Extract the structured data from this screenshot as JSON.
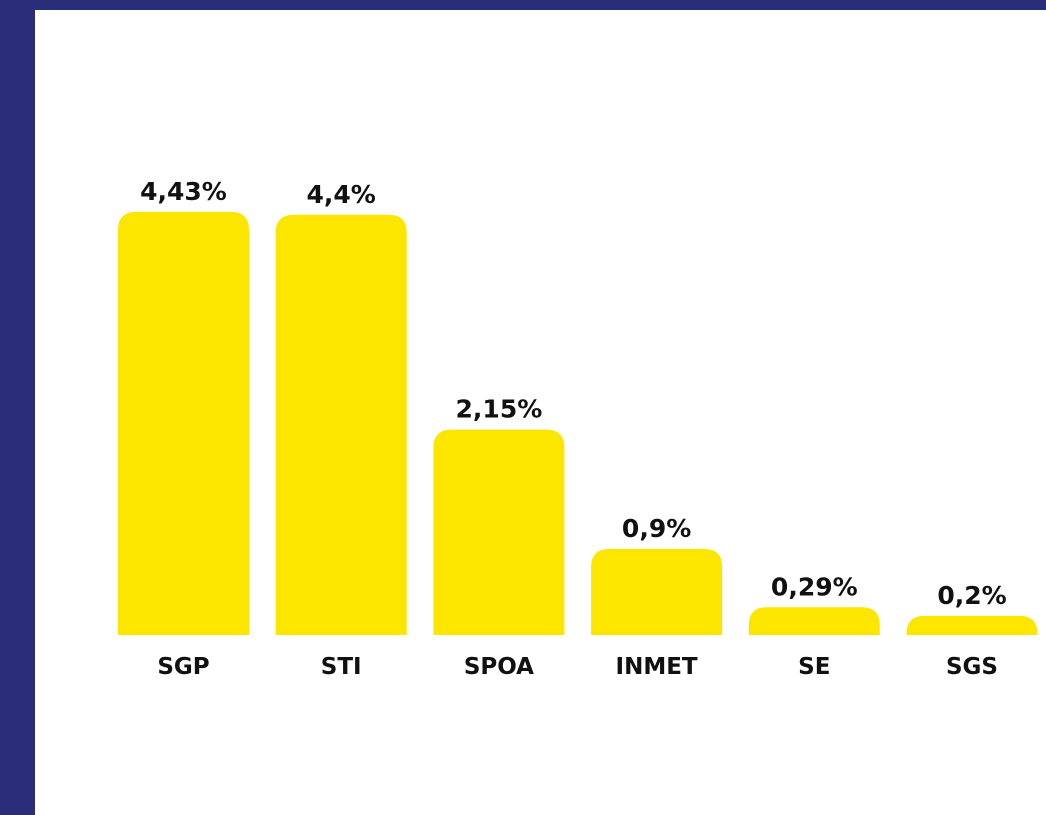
{
  "chart_data": {
    "type": "bar",
    "categories": [
      "SGP",
      "STI",
      "SPOA",
      "INMET",
      "SE",
      "SGS"
    ],
    "values": [
      4.43,
      4.4,
      2.15,
      0.9,
      0.29,
      0.2
    ],
    "value_labels": [
      "4,43%",
      "4,4%",
      "2,15%",
      "0,9%",
      "0,29%",
      "0,2%"
    ],
    "color": "#fce600"
  }
}
